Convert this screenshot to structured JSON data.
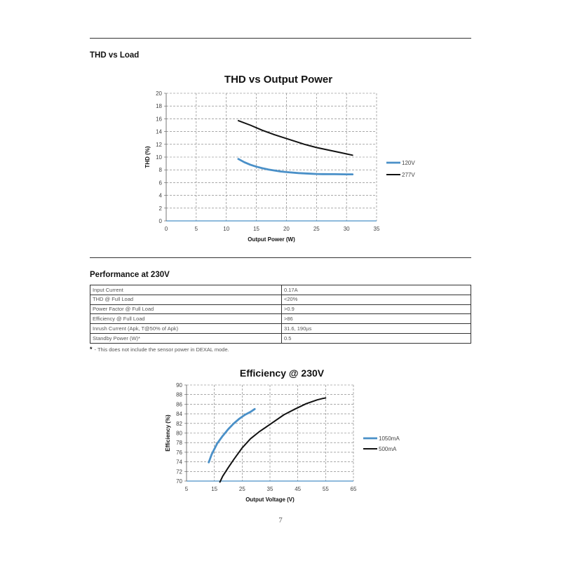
{
  "sections": {
    "thd_heading": "THD vs Load",
    "performance_heading": "Performance at 230V"
  },
  "performance_table": {
    "rows": [
      {
        "parameter": "Input Current",
        "value": "0.17A"
      },
      {
        "parameter": "THD @ Full Load",
        "value": "<20%"
      },
      {
        "parameter": "Power Factor @ Full Load",
        "value": ">0.9"
      },
      {
        "parameter": "Efficiency @ Full Load",
        "value": ">86"
      },
      {
        "parameter": "Inrush Current (Apk, T@50% of Apk)",
        "value": "31.6, 190µs"
      },
      {
        "parameter": "Standby Power (W)*",
        "value": "0.5"
      }
    ]
  },
  "footnote": {
    "marker": "*",
    "text": "- This does not include the sensor power in DEXAL mode."
  },
  "page_number": "7",
  "chart_data": [
    {
      "type": "line",
      "title": "THD vs Output Power",
      "xlabel": "Output Power (W)",
      "ylabel": "THD (%)",
      "xlim": [
        0,
        35
      ],
      "ylim": [
        0,
        20
      ],
      "xticks": [
        0,
        5,
        10,
        15,
        20,
        25,
        30,
        35
      ],
      "yticks": [
        0,
        2,
        4,
        6,
        8,
        10,
        12,
        14,
        16,
        18,
        20
      ],
      "grid": true,
      "legend": "right",
      "series": [
        {
          "name": "120V",
          "color": "#4a90c8",
          "x": [
            12,
            13,
            14,
            15,
            16,
            17,
            18,
            19,
            20,
            22,
            24,
            25,
            26,
            28,
            30,
            31
          ],
          "y": [
            9.7,
            9.2,
            8.8,
            8.5,
            8.25,
            8.05,
            7.9,
            7.75,
            7.65,
            7.5,
            7.4,
            7.35,
            7.33,
            7.32,
            7.3,
            7.3
          ]
        },
        {
          "name": "277V",
          "color": "#111111",
          "x": [
            12,
            14,
            16,
            18,
            20,
            22,
            23,
            25,
            27,
            29,
            31
          ],
          "y": [
            15.7,
            15.0,
            14.2,
            13.5,
            12.9,
            12.3,
            12.0,
            11.5,
            11.1,
            10.7,
            10.3
          ]
        }
      ]
    },
    {
      "type": "line",
      "title": "Efficiency @ 230V",
      "xlabel": "Output Voltage (V)",
      "ylabel": "Efficiency (%)",
      "xlim": [
        5,
        65
      ],
      "ylim": [
        70,
        90
      ],
      "xticks": [
        5,
        15,
        25,
        35,
        45,
        55,
        65
      ],
      "yticks": [
        70,
        72,
        74,
        76,
        78,
        80,
        82,
        84,
        86,
        88,
        90
      ],
      "grid": true,
      "legend": "right",
      "series": [
        {
          "name": "1050mA",
          "color": "#4a90c8",
          "x": [
            13,
            14,
            16,
            18,
            20,
            22,
            24,
            26,
            28,
            29.5
          ],
          "y": [
            73.9,
            75.5,
            77.8,
            79.4,
            80.8,
            82.0,
            83.0,
            83.8,
            84.4,
            85.0
          ]
        },
        {
          "name": "500mA",
          "color": "#111111",
          "x": [
            17,
            18,
            20,
            22,
            25,
            28,
            31,
            35,
            40,
            44,
            48,
            52,
            54,
            55
          ],
          "y": [
            69.8,
            71.0,
            72.8,
            74.5,
            76.9,
            78.8,
            80.2,
            81.8,
            83.8,
            85.0,
            86.1,
            86.9,
            87.2,
            87.3
          ]
        }
      ]
    }
  ]
}
